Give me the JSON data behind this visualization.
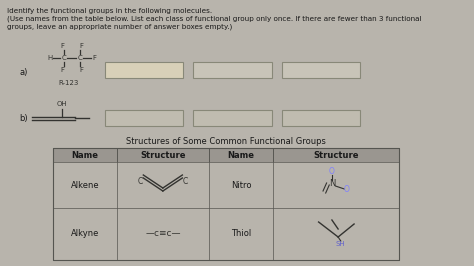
{
  "bg_color": "#b8b4ac",
  "text_color": "#1a1a1a",
  "title_line1": "Identify the functional groups in the following molecules.",
  "title_line2": "(Use names from the table below. List each class of functional group only once. If there are fewer than 3 functional",
  "title_line3": "groups, leave an appropriate number of answer boxes empty.)",
  "table_title": "Structures of Some Common Functional Groups",
  "answer_box_color_a1": "#d8d0b8",
  "answer_box_color_a2": "#c8c4b8",
  "answer_box_color_a3": "#c8c4b8",
  "answer_box_color_b": "#c0bcb0",
  "table_bg": "#c0bdb5",
  "table_header_bg": "#9a9690",
  "row_bg": "#b8b4ac",
  "border_color": "#555550",
  "mol_color": "#333330"
}
